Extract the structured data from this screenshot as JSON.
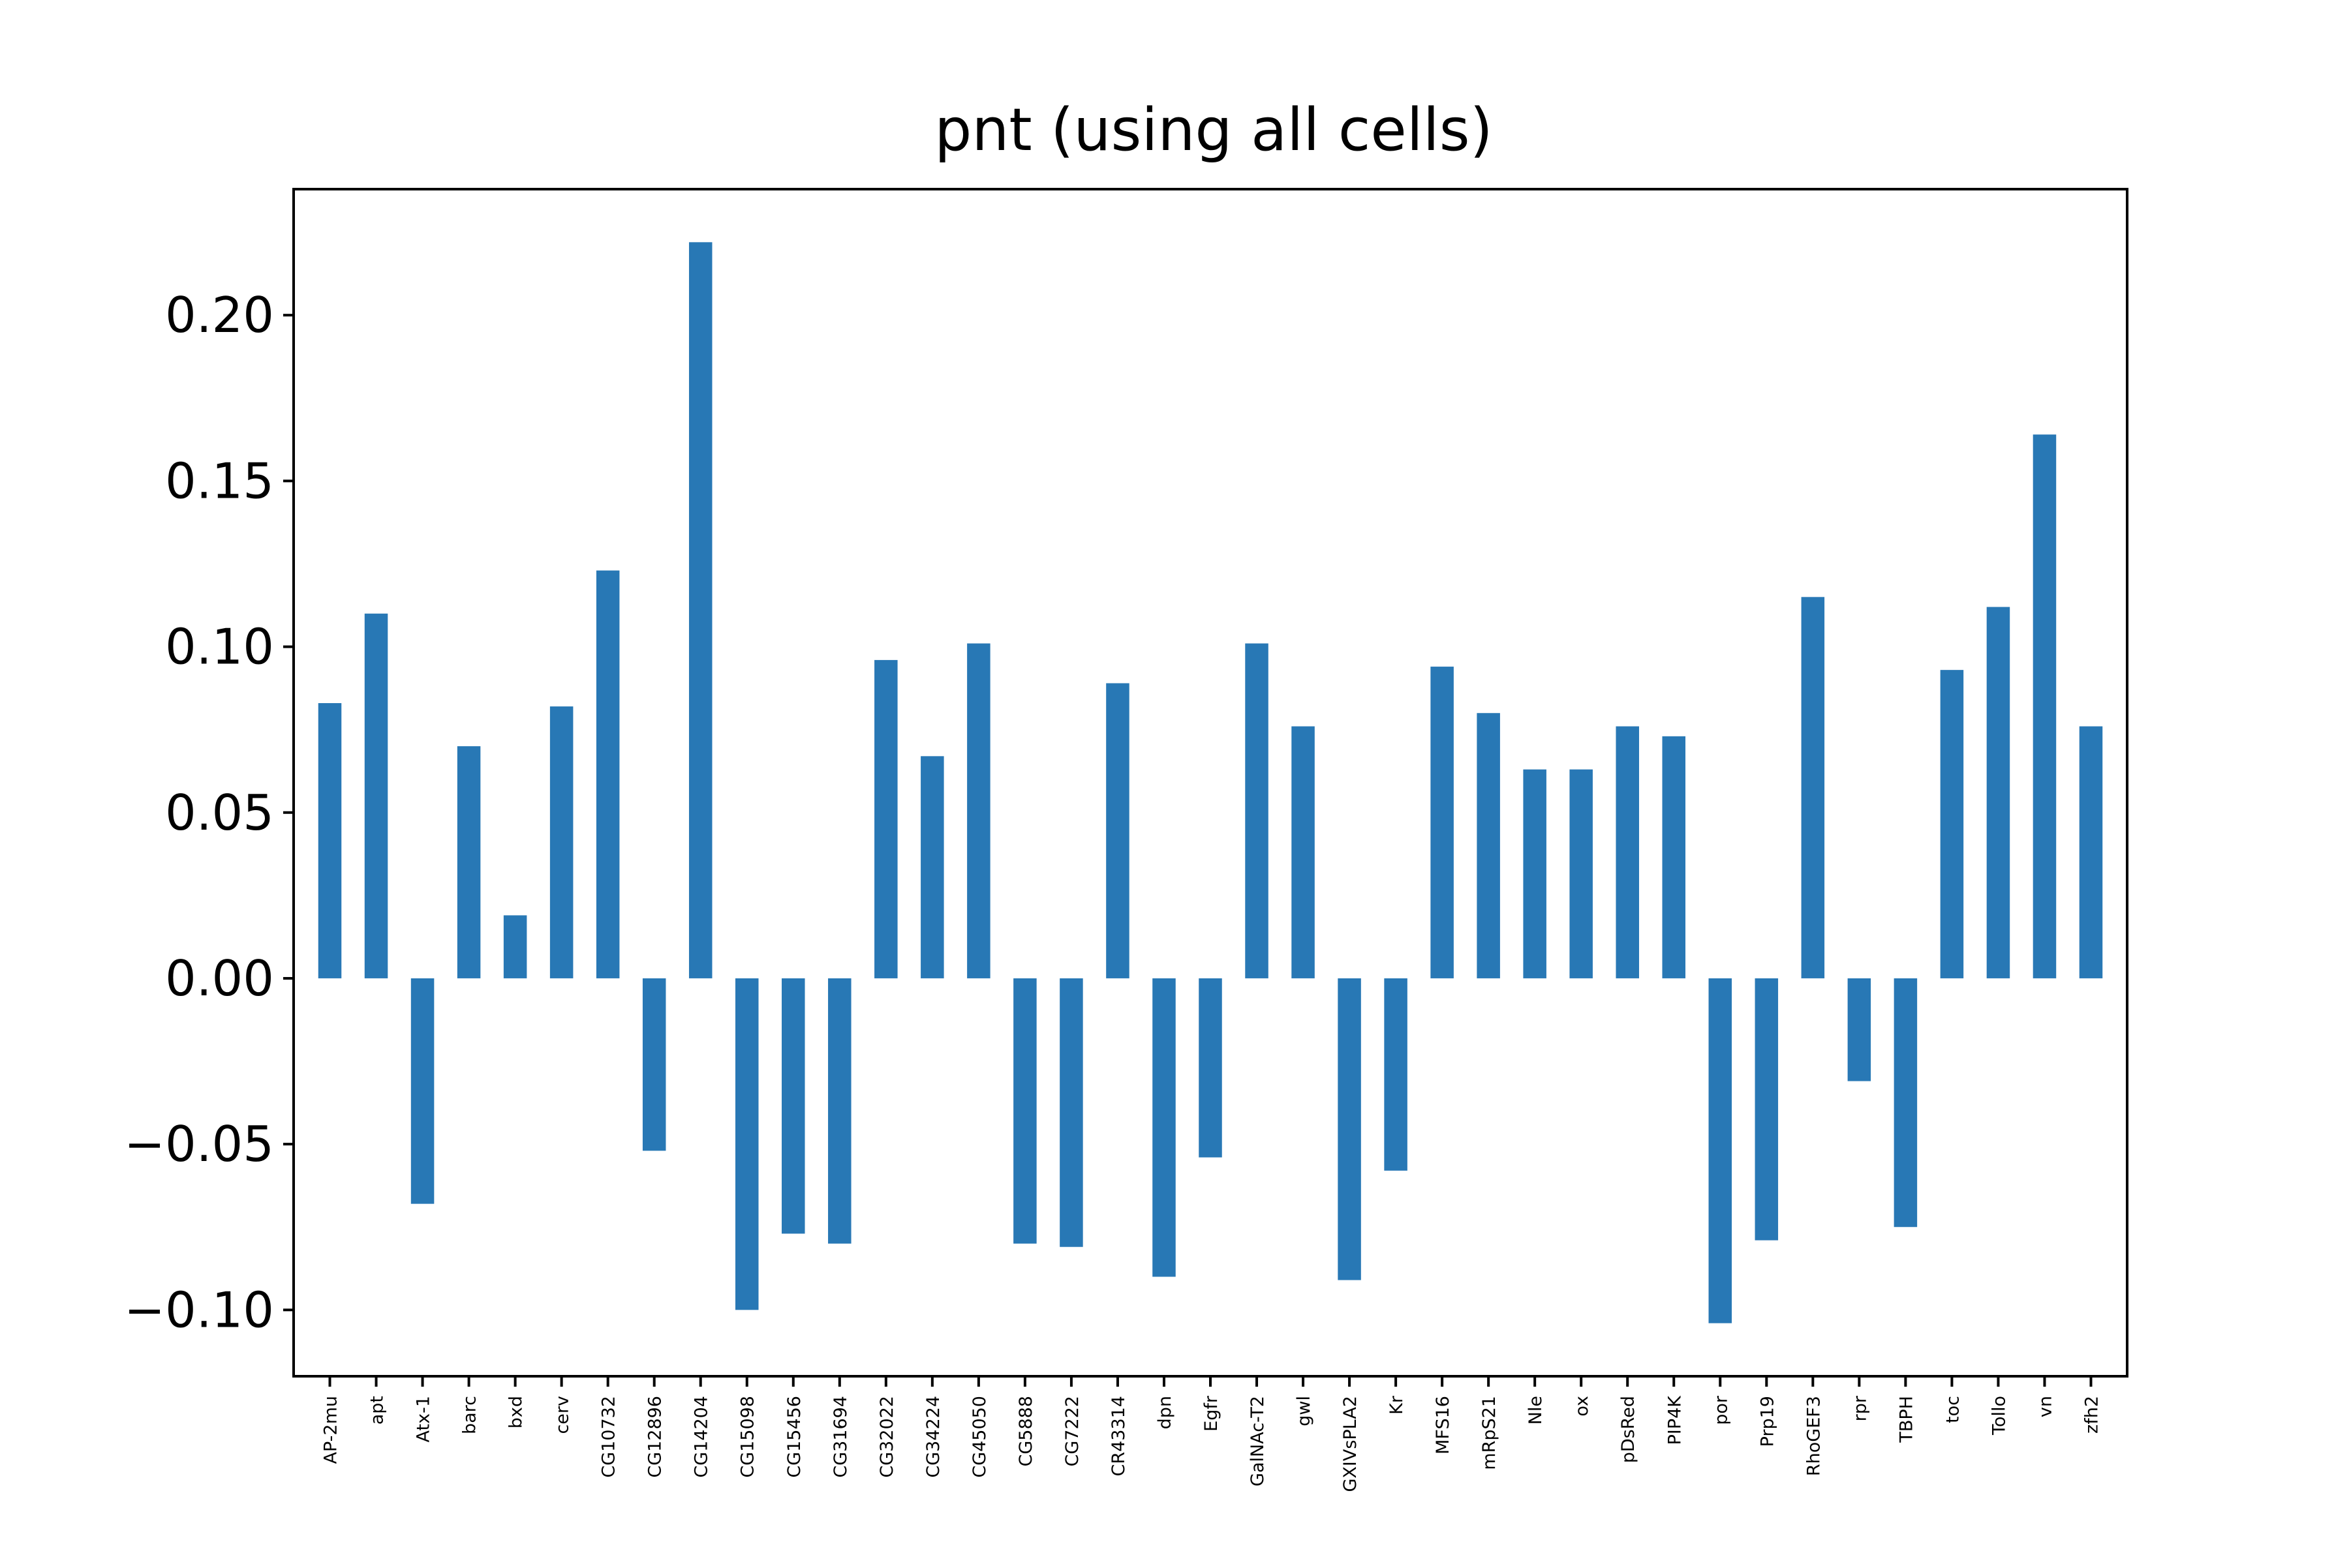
{
  "chart_data": {
    "type": "bar",
    "title": "pnt (using all cells)",
    "xlabel": "",
    "ylabel": "",
    "categories": [
      "AP-2mu",
      "apt",
      "Atx-1",
      "barc",
      "bxd",
      "cerv",
      "CG10732",
      "CG12896",
      "CG14204",
      "CG15098",
      "CG15456",
      "CG31694",
      "CG32022",
      "CG34224",
      "CG45050",
      "CG5888",
      "CG7222",
      "CR43314",
      "dpn",
      "Egfr",
      "GalNAc-T2",
      "gwl",
      "GXIVsPLA2",
      "Kr",
      "MFS16",
      "mRpS21",
      "Nle",
      "ox",
      "pDsRed",
      "PIP4K",
      "por",
      "Prp19",
      "RhoGEF3",
      "rpr",
      "TBPH",
      "toc",
      "Tollo",
      "vn",
      "zfh2"
    ],
    "values": [
      0.083,
      0.11,
      -0.068,
      0.07,
      0.019,
      0.082,
      0.123,
      -0.052,
      0.222,
      -0.1,
      -0.077,
      -0.08,
      0.096,
      0.067,
      0.101,
      -0.08,
      -0.081,
      0.089,
      -0.09,
      -0.054,
      0.101,
      0.076,
      -0.091,
      -0.058,
      0.094,
      0.08,
      0.063,
      0.063,
      0.076,
      0.073,
      -0.104,
      -0.079,
      0.115,
      -0.031,
      -0.075,
      0.093,
      0.112,
      0.164,
      0.076
    ],
    "ylim": [
      -0.12,
      0.238
    ],
    "yticks": [
      -0.1,
      -0.05,
      0.0,
      0.05,
      0.1,
      0.15,
      0.2
    ],
    "ytick_labels": [
      "−0.10",
      "−0.05",
      "0.00",
      "0.05",
      "0.10",
      "0.15",
      "0.20"
    ],
    "grid": false,
    "legend": "none",
    "color": "#2878b5"
  }
}
